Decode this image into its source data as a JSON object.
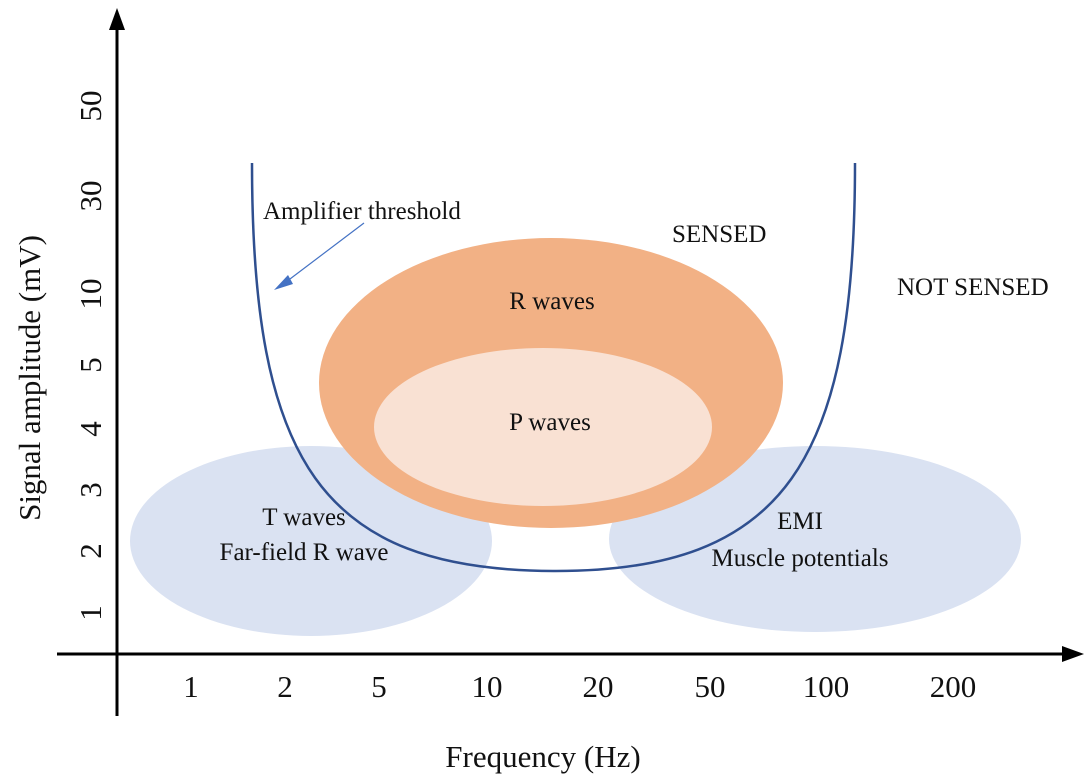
{
  "axes": {
    "x_title": "Frequency (Hz)",
    "y_title": "Signal amplitude (mV)",
    "x_ticks": [
      "1",
      "2",
      "5",
      "10",
      "20",
      "50",
      "100",
      "200"
    ],
    "y_ticks": [
      "1",
      "2",
      "3",
      "4",
      "5",
      "10",
      "30",
      "50"
    ]
  },
  "labels": {
    "threshold": "Amplifier threshold",
    "sensed": "SENSED",
    "not_sensed": "NOT SENSED",
    "r_waves": "R waves",
    "p_waves": "P waves",
    "t_waves_line1": "T waves",
    "t_waves_line2": "Far-field R wave",
    "emi_line1": "EMI",
    "emi_line2": "Muscle potentials"
  },
  "colors": {
    "r_waves_fill": "#f2b185",
    "p_waves_fill": "#f9e1d3",
    "blue_regions_fill": "#dae2f2",
    "threshold_curve": "#2f4f8f",
    "pointer_arrow": "#4472c4",
    "axis": "#000000"
  }
}
